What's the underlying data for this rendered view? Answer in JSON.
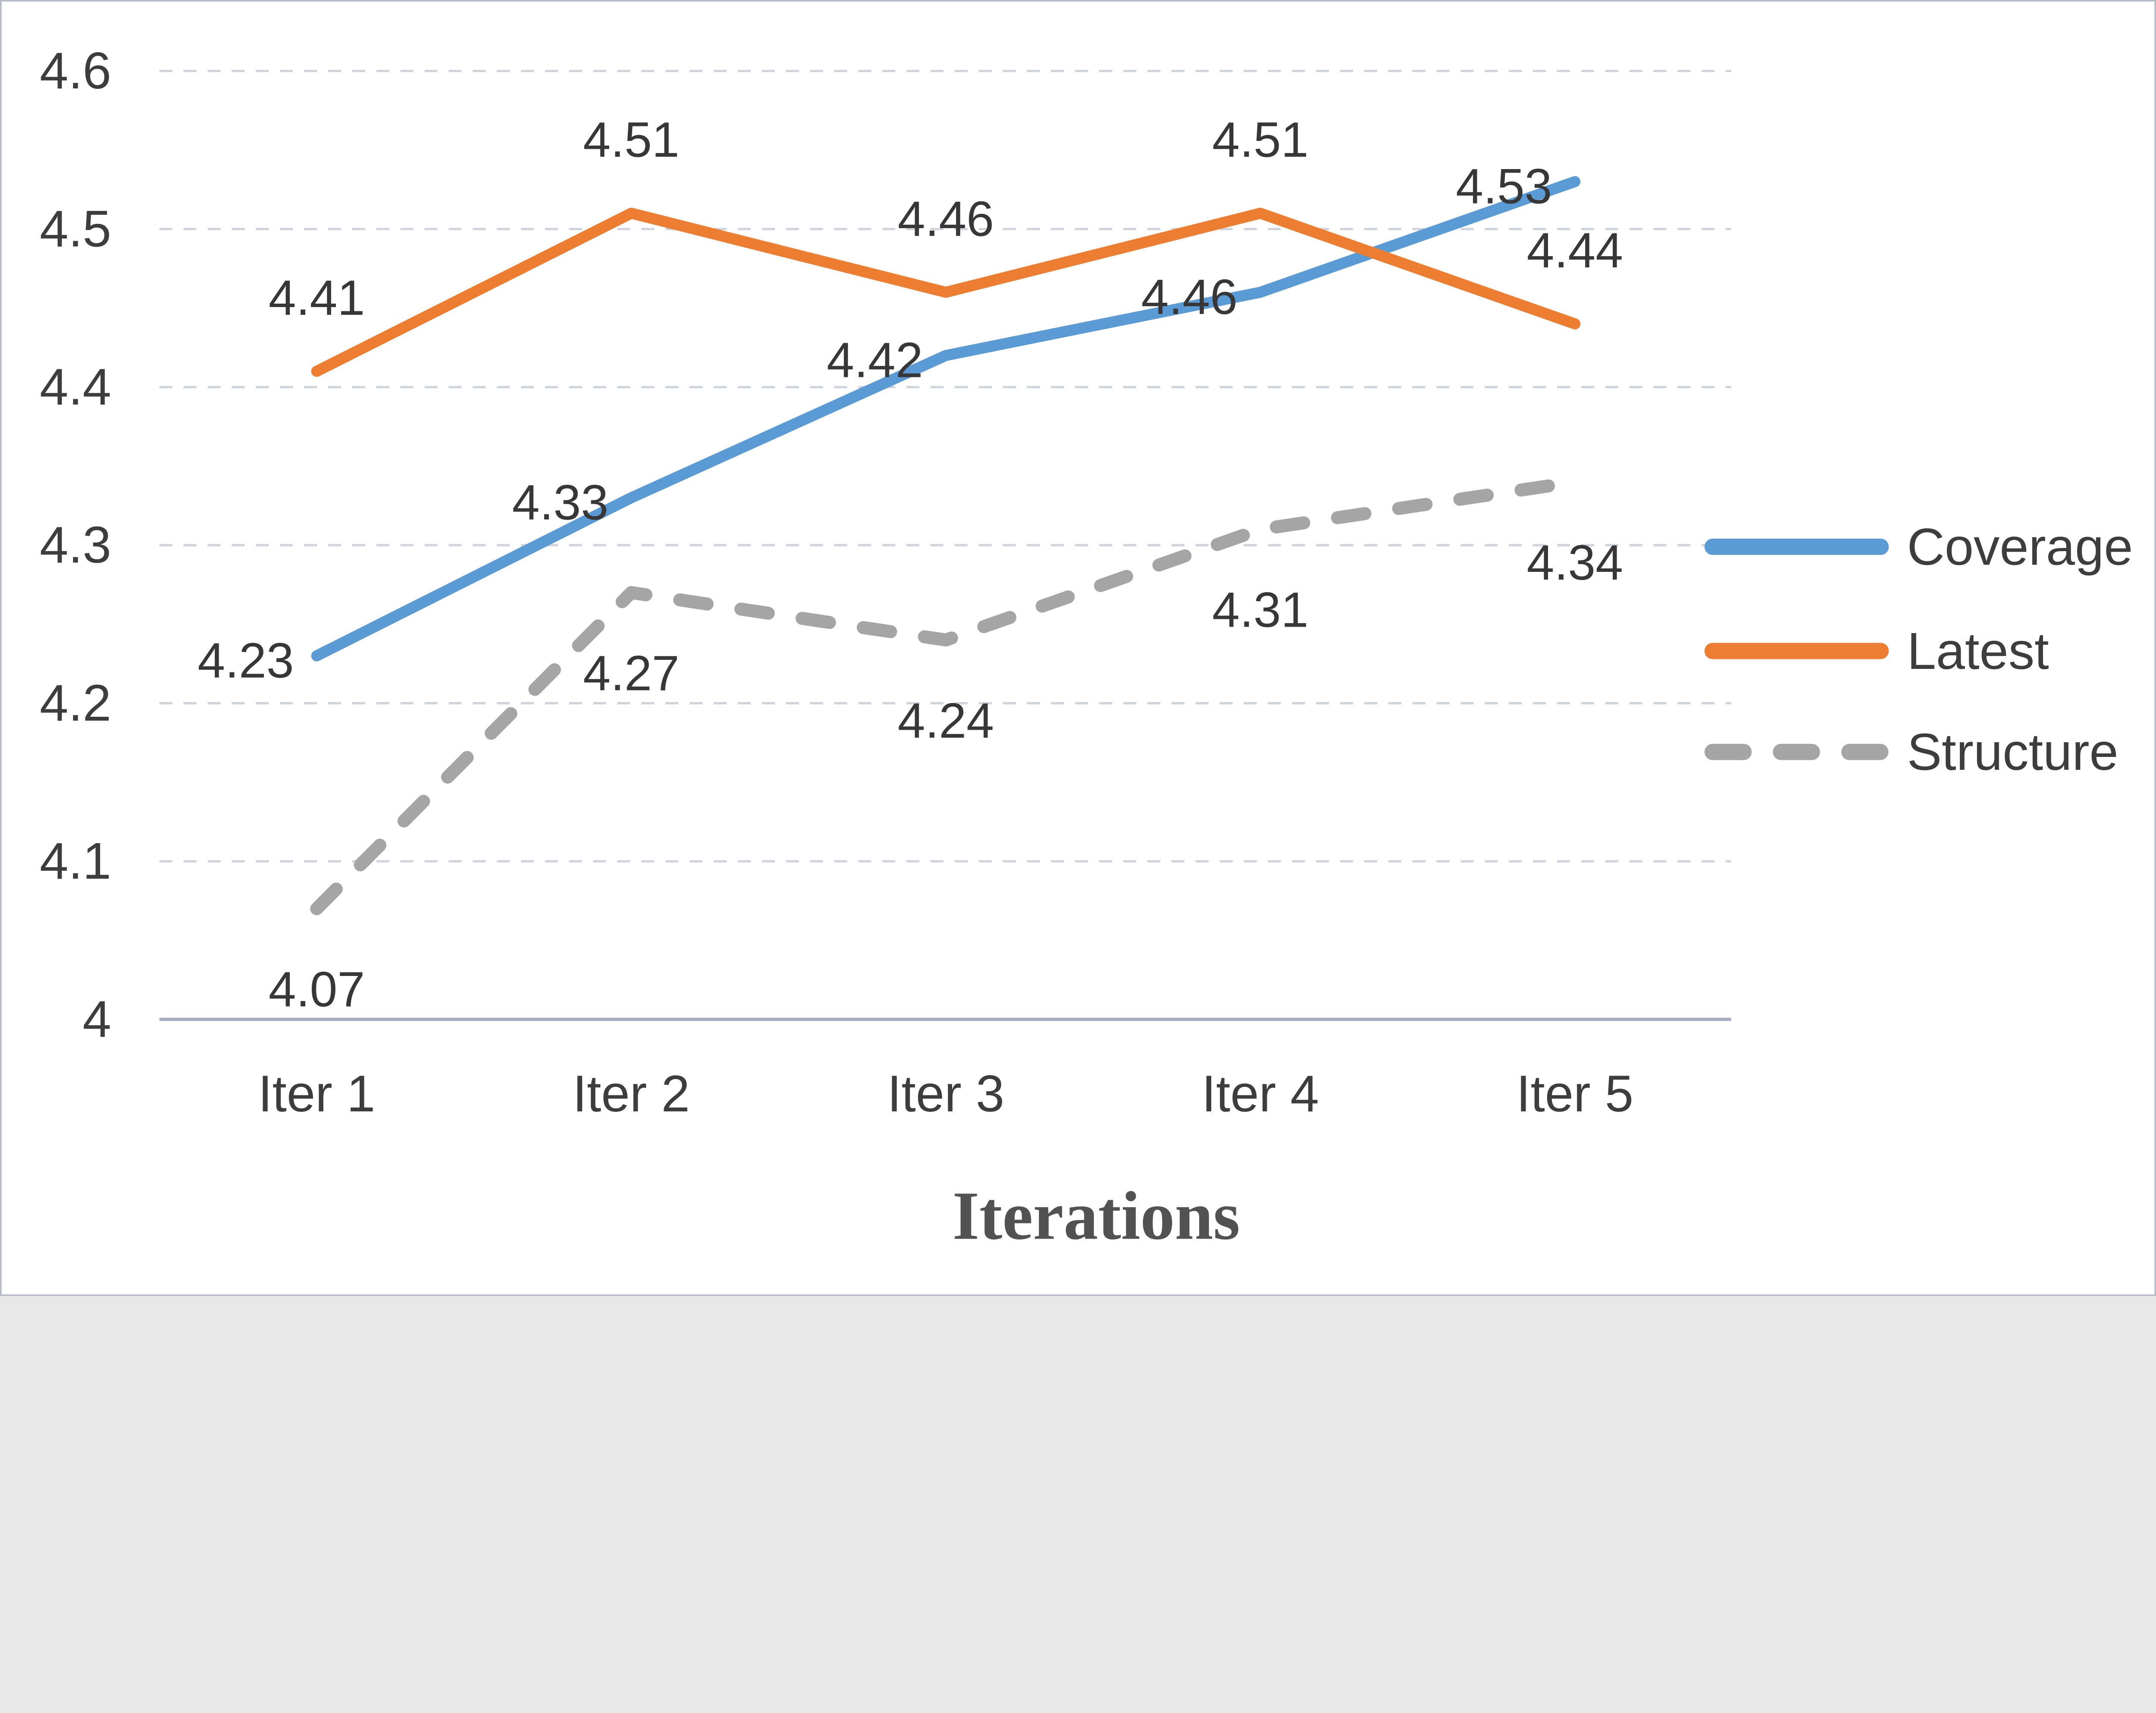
{
  "chart_data": {
    "type": "line",
    "categories": [
      "Iter 1",
      "Iter 2",
      "Iter 3",
      "Iter 4",
      "Iter 5"
    ],
    "series": [
      {
        "name": "Coverage",
        "values": [
          4.23,
          4.33,
          4.42,
          4.46,
          4.53
        ],
        "color": "#5B9BD5",
        "dash": "solid",
        "label_pos": "left"
      },
      {
        "name": "Latest",
        "values": [
          4.41,
          4.51,
          4.46,
          4.51,
          4.44
        ],
        "color": "#ED7D31",
        "dash": "solid",
        "label_pos": "above"
      },
      {
        "name": "Structure",
        "values": [
          4.07,
          4.27,
          4.24,
          4.31,
          4.34
        ],
        "color": "#A5A5A5",
        "dash": "dashed",
        "label_pos": "below"
      }
    ],
    "title": "",
    "xlabel": "Iterations",
    "ylabel": "",
    "ylim": [
      4,
      4.6
    ],
    "y_ticks": [
      "4",
      "4.1",
      "4.2",
      "4.3",
      "4.4",
      "4.5",
      "4.6"
    ],
    "grid": "horizontal-dashed",
    "legend_position": "right",
    "data_label_decimals": 2
  },
  "colors": {
    "background": "#ffffff",
    "gridline": "#cfd3dc",
    "axis_line": "#a9aec2",
    "tick_text": "#3d3d3d",
    "data_label_text": "#373737",
    "title_text": "#525252",
    "frame_border": "#b6bbc7"
  }
}
